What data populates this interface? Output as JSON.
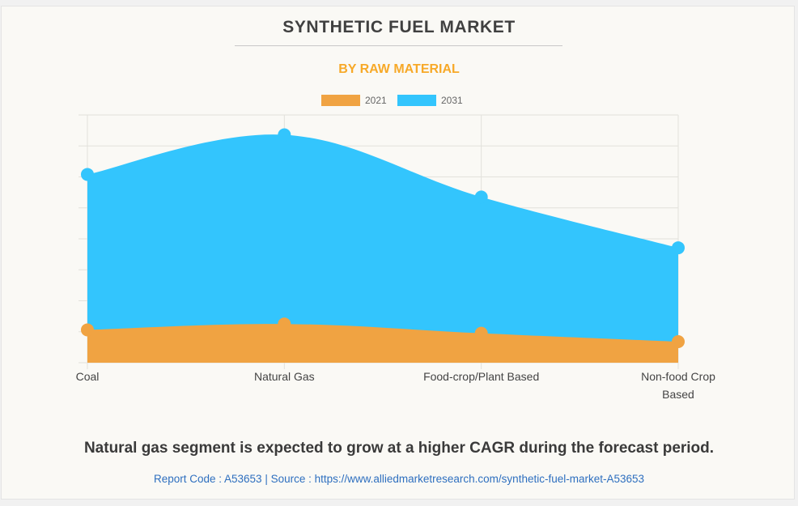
{
  "header": {
    "title": "SYNTHETIC FUEL MARKET",
    "subtitle": "BY RAW MATERIAL"
  },
  "footer": {
    "headline": "Natural gas segment is expected to grow at a higher CAGR during the forecast period.",
    "source": "Report Code : A53653  |  Source : https://www.alliedmarketresearch.com/synthetic-fuel-market-A53653"
  },
  "colors": {
    "series_2021": "#f0a342",
    "series_2031": "#33c5fd",
    "title": "#404040",
    "subtitle": "#f7a928",
    "link": "#2e6fbf"
  },
  "chart_data": {
    "type": "area",
    "title": "SYNTHETIC FUEL MARKET",
    "subtitle": "BY RAW MATERIAL",
    "xlabel": "",
    "ylabel": "",
    "y_units_note": "No y-axis tick labels shown; values expressed in gridline units (relative)",
    "ylim": [
      0,
      8
    ],
    "grid": true,
    "legend_position": "top-center",
    "categories": [
      "Coal",
      "Natural Gas",
      "Food-crop/Plant Based",
      "Non-food Crop Based"
    ],
    "category_lines": [
      [
        "Coal"
      ],
      [
        "Natural Gas"
      ],
      [
        "Food-crop/Plant Based"
      ],
      [
        "Non-food Crop",
        "Based"
      ]
    ],
    "series": [
      {
        "name": "2021",
        "color": "#f0a342",
        "values": [
          1.06,
          1.25,
          0.95,
          0.68
        ]
      },
      {
        "name": "2031",
        "color": "#33c5fd",
        "values": [
          6.08,
          7.36,
          5.35,
          3.71
        ]
      }
    ]
  }
}
